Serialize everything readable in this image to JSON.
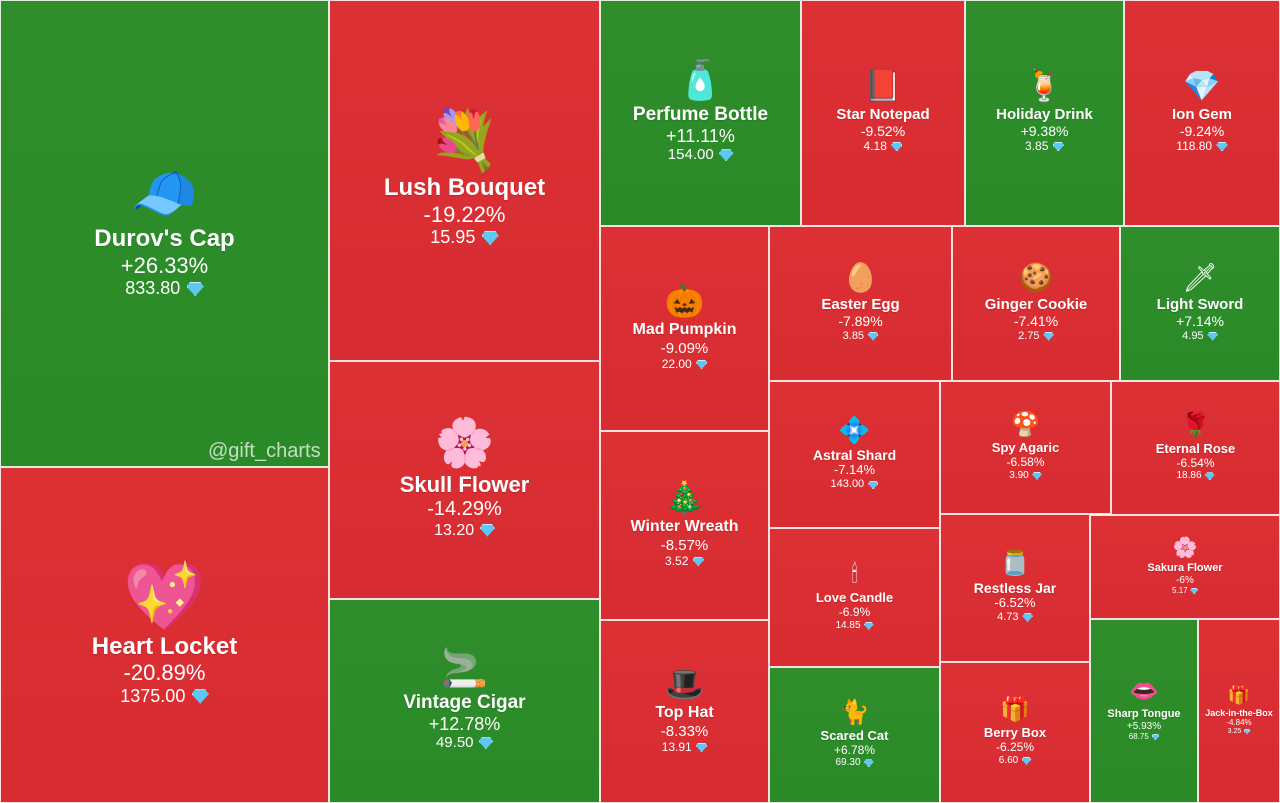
{
  "watermark": "@gift_charts",
  "colors": {
    "up": "#2f8e2b",
    "down": "#dc3035",
    "border": "#ffffff",
    "gem": "#5ec8f5"
  },
  "chart_data": {
    "type": "treemap",
    "items": [
      {
        "name": "Durov's Cap",
        "change": "+26.33%",
        "price": "833.80",
        "icon": "🧢",
        "direction": "up"
      },
      {
        "name": "Heart Locket",
        "change": "-20.89%",
        "price": "1375.00",
        "icon": "💖",
        "direction": "down"
      },
      {
        "name": "Lush Bouquet",
        "change": "-19.22%",
        "price": "15.95",
        "icon": "💐",
        "direction": "down"
      },
      {
        "name": "Skull Flower",
        "change": "-14.29%",
        "price": "13.20",
        "icon": "🌸",
        "direction": "down"
      },
      {
        "name": "Vintage Cigar",
        "change": "+12.78%",
        "price": "49.50",
        "icon": "🚬",
        "direction": "up"
      },
      {
        "name": "Perfume Bottle",
        "change": "+11.11%",
        "price": "154.00",
        "icon": "🧴",
        "direction": "up"
      },
      {
        "name": "Star Notepad",
        "change": "-9.52%",
        "price": "4.18",
        "icon": "📕",
        "direction": "down"
      },
      {
        "name": "Holiday Drink",
        "change": "+9.38%",
        "price": "3.85",
        "icon": "🍹",
        "direction": "up"
      },
      {
        "name": "Ion Gem",
        "change": "-9.24%",
        "price": "118.80",
        "icon": "💎",
        "direction": "down"
      },
      {
        "name": "Mad Pumpkin",
        "change": "-9.09%",
        "price": "22.00",
        "icon": "🎃",
        "direction": "down"
      },
      {
        "name": "Easter Egg",
        "change": "-7.89%",
        "price": "3.85",
        "icon": "🥚",
        "direction": "down"
      },
      {
        "name": "Ginger Cookie",
        "change": "-7.41%",
        "price": "2.75",
        "icon": "🍪",
        "direction": "down"
      },
      {
        "name": "Light Sword",
        "change": "+7.14%",
        "price": "4.95",
        "icon": "🗡",
        "direction": "up"
      },
      {
        "name": "Winter Wreath",
        "change": "-8.57%",
        "price": "3.52",
        "icon": "🎄",
        "direction": "down"
      },
      {
        "name": "Astral Shard",
        "change": "-7.14%",
        "price": "143.00",
        "icon": "💠",
        "direction": "down"
      },
      {
        "name": "Spy Agaric",
        "change": "-6.58%",
        "price": "3.90",
        "icon": "🍄",
        "direction": "down"
      },
      {
        "name": "Eternal Rose",
        "change": "-6.54%",
        "price": "18.86",
        "icon": "🌹",
        "direction": "down"
      },
      {
        "name": "Love Candle",
        "change": "-6.9%",
        "price": "14.85",
        "icon": "🕯",
        "direction": "down"
      },
      {
        "name": "Restless Jar",
        "change": "-6.52%",
        "price": "4.73",
        "icon": "🫙",
        "direction": "down"
      },
      {
        "name": "Sakura Flower",
        "change": "-6%",
        "price": "5.17",
        "icon": "🌸",
        "direction": "down"
      },
      {
        "name": "Top Hat",
        "change": "-8.33%",
        "price": "13.91",
        "icon": "🎩",
        "direction": "down"
      },
      {
        "name": "Scared Cat",
        "change": "+6.78%",
        "price": "69.30",
        "icon": "🐈",
        "direction": "up"
      },
      {
        "name": "Berry Box",
        "change": "-6.25%",
        "price": "6.60",
        "icon": "🎁",
        "direction": "down"
      },
      {
        "name": "Sharp Tongue",
        "change": "+5.93%",
        "price": "68.75",
        "icon": "👄",
        "direction": "up"
      },
      {
        "name": "Jack-in-the-Box",
        "change": "-4.84%",
        "price": "3.25",
        "icon": "🎁",
        "direction": "down"
      }
    ]
  }
}
